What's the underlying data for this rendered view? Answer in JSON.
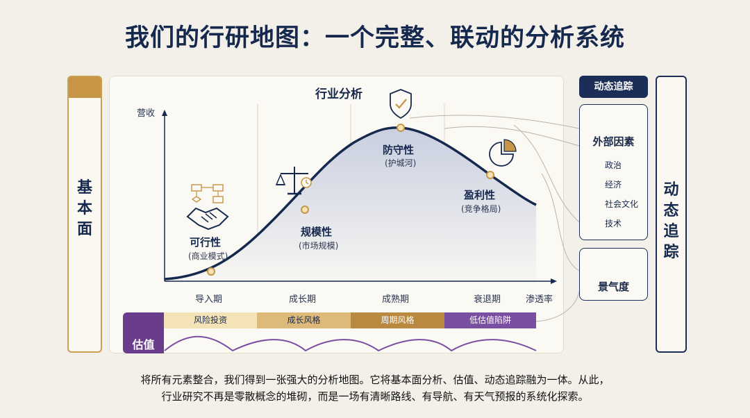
{
  "title": "我们的行研地图：一个完整、联动的分析系统",
  "left_side": {
    "chars": [
      "基",
      "本",
      "面"
    ]
  },
  "right_side": {
    "chars": [
      "动",
      "态",
      "追",
      "踪"
    ]
  },
  "panel": {
    "title": "行业分析",
    "y_axis": "营收",
    "x_axis": "渗透率",
    "phases": [
      "导入期",
      "成长期",
      "成熟期",
      "衰退期"
    ],
    "stages": [
      {
        "label": "可行性",
        "sub": "(商业模式)"
      },
      {
        "label": "规模性",
        "sub": "(市场规模)"
      },
      {
        "label": "防守性",
        "sub": "(护城河)"
      },
      {
        "label": "盈利性",
        "sub": "(竞争格局)"
      }
    ]
  },
  "valuation": {
    "label": "估值",
    "bands": [
      "风险投资",
      "成长风格",
      "周期风格",
      "低估值陷阱"
    ]
  },
  "dynamic": {
    "header": "动态追踪",
    "factors_title": "外部因素",
    "factors": [
      {
        "label": "政治",
        "icon": "bank-icon"
      },
      {
        "label": "经济",
        "icon": "money-bag-icon"
      },
      {
        "label": "社会文化",
        "icon": "people-icon"
      },
      {
        "label": "技术",
        "icon": "gear-icon"
      }
    ],
    "climate": "景气度"
  },
  "footer": {
    "line1": "将所有元素整合，我们得到一张强大的分析地图。它将基本面分析、估值、动态追踪融为一体。从此，",
    "line2": "行业研究不再是零散概念的堆砌，而是一场有清晰路线、有导航、有天气预报的系统化探索。"
  },
  "colors": {
    "navy": "#1c2e58",
    "gold": "#c79546",
    "purple": "#6a3d8c"
  }
}
